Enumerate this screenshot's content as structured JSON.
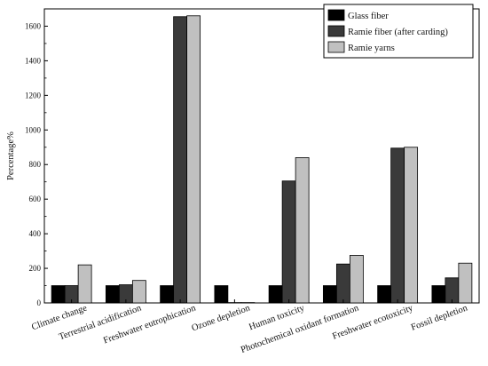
{
  "chart_data": {
    "type": "bar",
    "title": "",
    "xlabel": "",
    "ylabel": "Percentage%",
    "ylim": [
      0,
      1700
    ],
    "yticks": [
      0,
      200,
      400,
      600,
      800,
      1000,
      1200,
      1400,
      1600
    ],
    "grid": false,
    "legend_position": "top-right",
    "categories": [
      "Climate change",
      "Terrestrial acidification",
      "Freshwater eutrophication",
      "Ozone depletion",
      "Human toxicity",
      "Photochemical oxidant formation",
      "Freshwater ecotoxicity",
      "Fossil depletion"
    ],
    "series": [
      {
        "name": "Glass fiber",
        "color": "#000000",
        "values": [
          100,
          100,
          100,
          100,
          100,
          100,
          100,
          100
        ]
      },
      {
        "name": "Ramie fiber (after carding)",
        "color": "#3a3a3a",
        "values": [
          100,
          105,
          1655,
          2,
          705,
          225,
          895,
          145
        ]
      },
      {
        "name": "Ramie yarns",
        "color": "#c0c0c0",
        "values": [
          220,
          130,
          1660,
          2,
          840,
          275,
          900,
          230
        ]
      }
    ]
  }
}
